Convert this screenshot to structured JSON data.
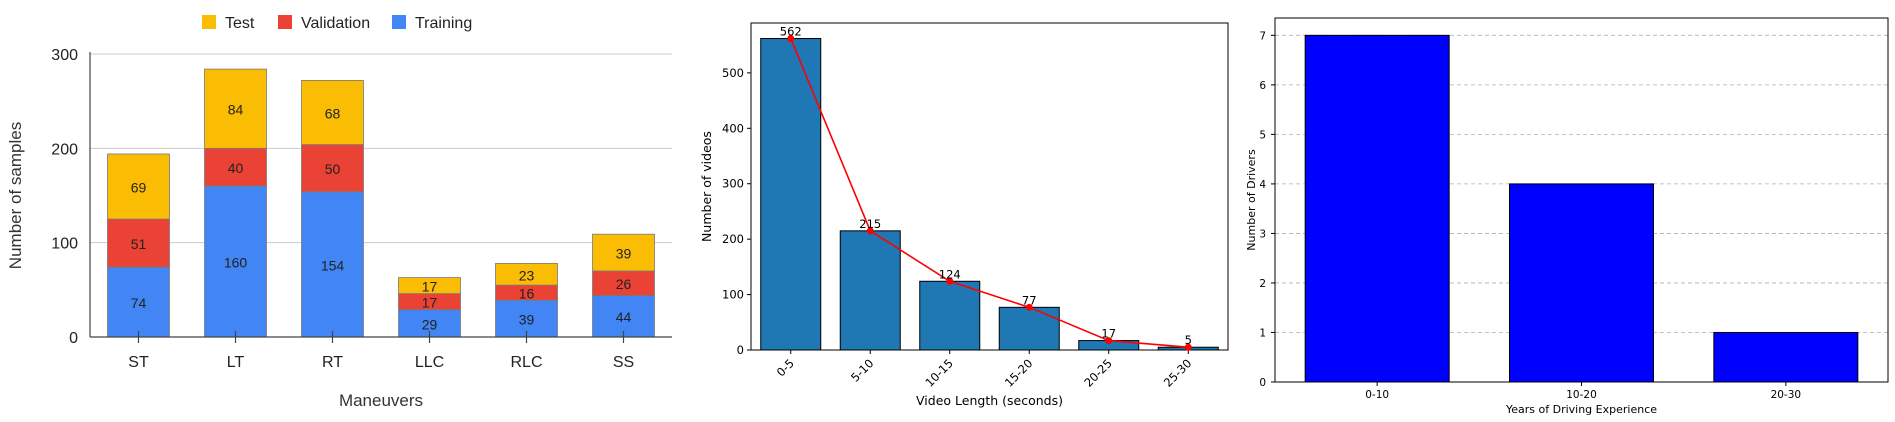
{
  "chart_data": [
    {
      "type": "bar",
      "stacked": true,
      "categories": [
        "ST",
        "LT",
        "RT",
        "LLC",
        "RLC",
        "SS"
      ],
      "series": [
        {
          "name": "Training",
          "values": [
            74,
            160,
            154,
            29,
            39,
            44
          ],
          "color": "#4285f4"
        },
        {
          "name": "Validation",
          "values": [
            51,
            40,
            50,
            17,
            16,
            26
          ],
          "color": "#ea4335"
        },
        {
          "name": "Test",
          "values": [
            69,
            84,
            68,
            17,
            23,
            39
          ],
          "color": "#fbbc04"
        }
      ],
      "legend_order": [
        "Test",
        "Validation",
        "Training"
      ],
      "legend_placement": "top",
      "xlabel": "Maneuvers",
      "ylabel": "Number of samples",
      "ylim": [
        0,
        300
      ],
      "yticks": [
        0,
        100,
        200,
        300
      ],
      "grid": true
    },
    {
      "type": "bar",
      "categories": [
        "0-5",
        "5-10",
        "10-15",
        "15-20",
        "20-25",
        "25-30"
      ],
      "values": [
        562,
        215,
        124,
        77,
        17,
        5
      ],
      "overlay_line": true,
      "bar_color": "#1f77b4",
      "line_color": "#ff0000",
      "xlabel": "Video Length (seconds)",
      "ylabel": "Number of videos",
      "ylim": [
        0,
        590
      ],
      "yticks": [
        0,
        100,
        200,
        300,
        400,
        500
      ],
      "grid": false
    },
    {
      "type": "bar",
      "categories": [
        "0-10",
        "10-20",
        "20-30"
      ],
      "values": [
        7,
        4,
        1
      ],
      "bar_color": "#0000ff",
      "xlabel": "Years of Driving Experience",
      "ylabel": "Number of Drivers",
      "ylim": [
        0,
        7.35
      ],
      "yticks": [
        0,
        1,
        2,
        3,
        4,
        5,
        6,
        7
      ],
      "grid": true
    }
  ]
}
